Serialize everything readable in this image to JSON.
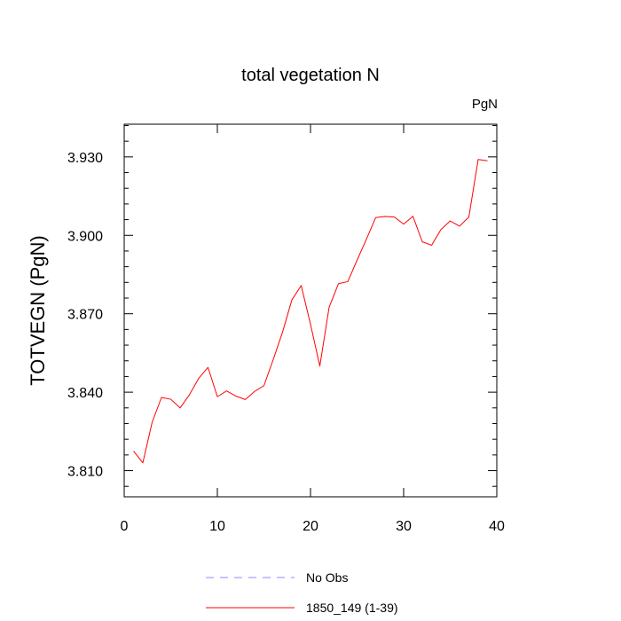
{
  "chart_data": {
    "type": "line",
    "title": "total vegetation N",
    "units_label": "PgN",
    "xlabel": "",
    "ylabel": "TOTVEGN  (PgN)",
    "xlim": [
      0,
      40
    ],
    "ylim": [
      3.8,
      3.9425
    ],
    "x_ticks": [
      0,
      10,
      20,
      30,
      40
    ],
    "x_tick_labels": [
      "0",
      "10",
      "20",
      "30",
      "40"
    ],
    "y_ticks": [
      3.81,
      3.84,
      3.87,
      3.9,
      3.93
    ],
    "y_tick_labels": [
      "3.810",
      "3.840",
      "3.870",
      "3.900",
      "3.930"
    ],
    "grid": false,
    "legend_position": "bottom-center",
    "series": [
      {
        "name": "1850_149 (1-39)",
        "color": "#ff0000",
        "dash": "solid",
        "x": [
          1,
          2,
          3,
          4,
          5,
          6,
          7,
          8,
          9,
          10,
          11,
          12,
          13,
          14,
          15,
          16,
          17,
          18,
          19,
          20,
          21,
          22,
          23,
          24,
          25,
          26,
          27,
          28,
          29,
          30,
          31,
          32,
          33,
          34,
          35,
          36,
          37,
          38,
          39
        ],
        "values": [
          3.8175,
          3.813,
          3.8285,
          3.838,
          3.8373,
          3.834,
          3.839,
          3.8453,
          3.8495,
          3.8383,
          3.8405,
          3.8385,
          3.8372,
          3.8403,
          3.8425,
          3.8525,
          3.863,
          3.8753,
          3.8808,
          3.866,
          3.85,
          3.8725,
          3.8815,
          3.8823,
          3.8905,
          3.8985,
          3.9068,
          3.9072,
          3.907,
          3.9043,
          3.9073,
          3.8975,
          3.8962,
          3.9022,
          3.9055,
          3.9035,
          3.907,
          3.929,
          3.9285
        ]
      }
    ],
    "legend": [
      {
        "name": "No Obs",
        "color": "#8888ff",
        "dash": "dashed"
      },
      {
        "name": "1850_149 (1-39)",
        "color": "#ff0000",
        "dash": "solid"
      }
    ]
  }
}
